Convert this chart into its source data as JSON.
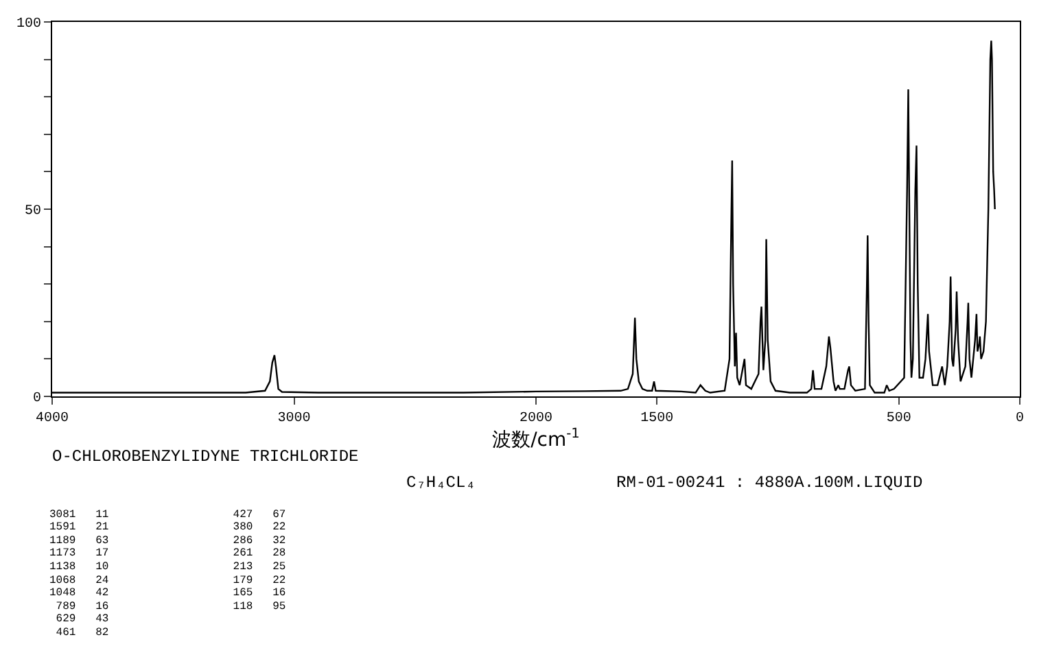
{
  "chart_data": {
    "type": "line",
    "xlabel": "波数/cm$^{-1}$",
    "annotations": [
      "O-CHLOROBENZYLIDYNE TRICHLORIDE",
      "C₇H₄CL₄",
      "RM-01-00241 : 4880A.100M.LIQUID",
      "3081   11",
      "1591   21",
      "1189   63",
      "1173   17",
      "1138   10",
      "1068   24",
      "1048   42",
      " 789   16",
      " 629   43",
      " 461   82",
      " 427   67",
      " 380   22",
      " 286   32",
      " 261   28",
      " 213   25",
      " 179   22",
      " 165   16",
      " 118   95"
    ],
    "x": [
      4000,
      3800,
      3600,
      3400,
      3200,
      3120,
      3100,
      3090,
      3081,
      3075,
      3065,
      3050,
      2900,
      2600,
      2300,
      2000,
      1800,
      1650,
      1620,
      1600,
      1591,
      1585,
      1575,
      1560,
      1540,
      1520,
      1512,
      1505,
      1400,
      1340,
      1320,
      1300,
      1280,
      1220,
      1200,
      1192,
      1189,
      1185,
      1178,
      1173,
      1168,
      1158,
      1138,
      1132,
      1110,
      1080,
      1072,
      1068,
      1060,
      1052,
      1048,
      1042,
      1030,
      1010,
      950,
      880,
      862,
      855,
      848,
      820,
      800,
      789,
      783,
      770,
      762,
      750,
      744,
      725,
      710,
      705,
      698,
      680,
      640,
      632,
      629,
      625,
      620,
      600,
      560,
      550,
      540,
      520,
      478,
      466,
      461,
      458,
      452,
      448,
      442,
      432,
      427,
      422,
      415,
      400,
      390,
      380,
      375,
      360,
      340,
      321,
      310,
      300,
      290,
      286,
      280,
      275,
      265,
      261,
      255,
      245,
      225,
      216,
      213,
      208,
      200,
      185,
      179,
      175,
      168,
      165,
      160,
      150,
      140,
      130,
      122,
      118,
      115,
      110,
      106,
      103
    ],
    "values": [
      1,
      1,
      1,
      1,
      1,
      1.5,
      4,
      9,
      11,
      8,
      2,
      1.2,
      1,
      1,
      1,
      1.3,
      1.4,
      1.5,
      2,
      6,
      21,
      10,
      4,
      2,
      1.5,
      1.5,
      4,
      1.5,
      1.3,
      1,
      3,
      1.5,
      1,
      1.5,
      10,
      50,
      63,
      30,
      8,
      17,
      5,
      3,
      10,
      3,
      2,
      6,
      20,
      24,
      7,
      15,
      42,
      15,
      4,
      1.5,
      1,
      1,
      2,
      7,
      2,
      2,
      8,
      16,
      13,
      4,
      1.5,
      3,
      2,
      2,
      7,
      8,
      3,
      1.5,
      2,
      30,
      43,
      20,
      3,
      1,
      1,
      3,
      1.5,
      2,
      5,
      55,
      82,
      60,
      15,
      5,
      10,
      55,
      67,
      30,
      5,
      5,
      10,
      22,
      12,
      3,
      3,
      8,
      3,
      8,
      20,
      32,
      10,
      8,
      18,
      28,
      15,
      4,
      8,
      20,
      25,
      10,
      5,
      15,
      22,
      12,
      14,
      16,
      10,
      12,
      20,
      50,
      90,
      95,
      90,
      60,
      55,
      50
    ],
    "color": "#000000",
    "xlim": [
      4000,
      0
    ],
    "xticks": [
      4000,
      3000,
      2000,
      1500,
      500,
      0
    ],
    "ylim": [
      0,
      100
    ],
    "yticks": [
      0,
      {
        "value": 10,
        "label": null
      },
      {
        "value": 20,
        "label": null
      },
      {
        "value": 30,
        "label": null
      },
      {
        "value": 40,
        "label": null
      },
      50,
      {
        "value": 60,
        "label": null
      },
      {
        "value": 70,
        "label": null
      },
      {
        "value": 80,
        "label": null
      },
      {
        "value": 90,
        "label": null
      },
      100
    ],
    "legend": false,
    "marker": "none",
    "line_style": "solid"
  }
}
